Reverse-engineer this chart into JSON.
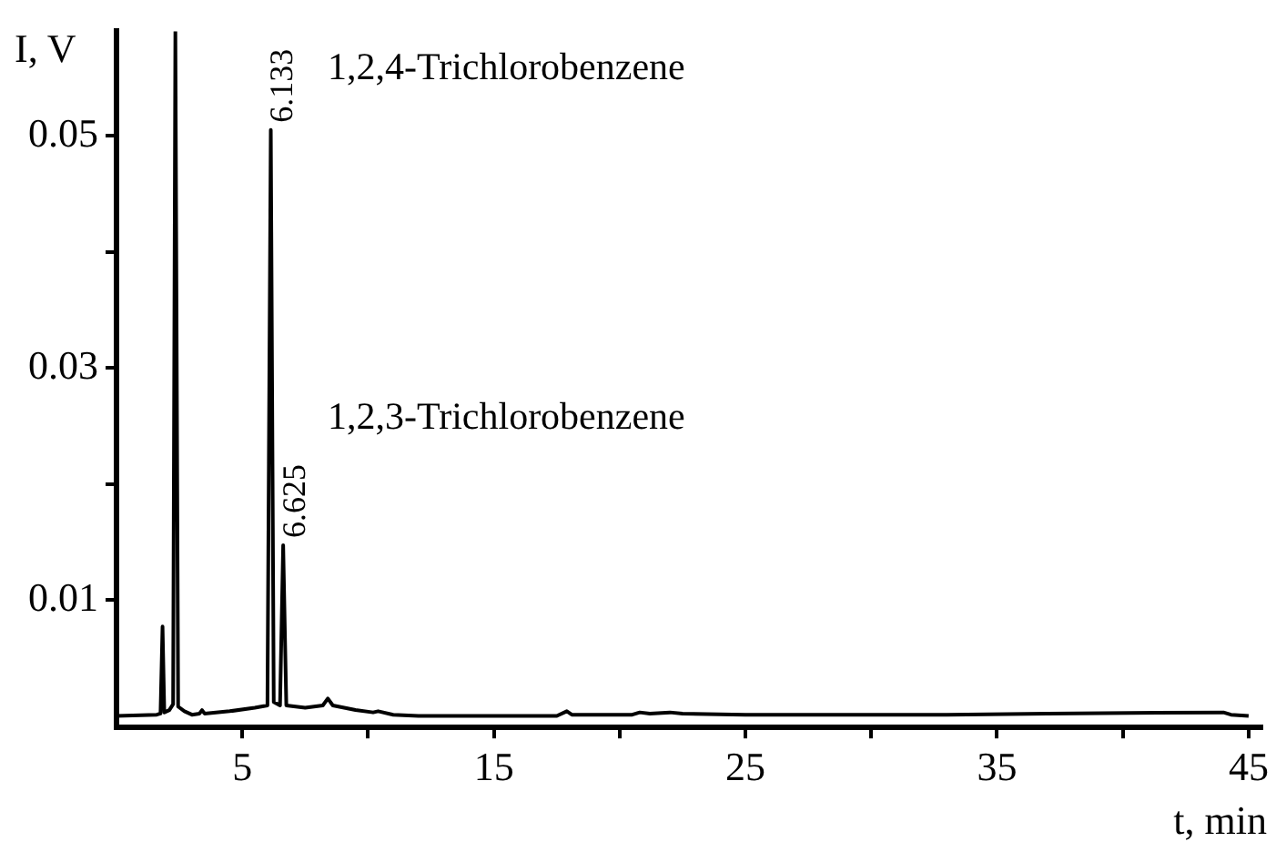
{
  "chart_data": {
    "type": "line",
    "xlabel": "t, min",
    "ylabel": "I, V",
    "x": [
      0,
      1.6,
      1.75,
      1.83,
      1.9,
      2.1,
      2.25,
      2.34,
      2.45,
      2.7,
      3.0,
      3.3,
      3.4,
      3.5,
      4.5,
      5.5,
      6.0,
      6.133,
      6.25,
      6.5,
      6.625,
      6.75,
      7.5,
      8.2,
      8.4,
      8.6,
      9.5,
      10.2,
      10.4,
      11,
      12,
      17.5,
      17.9,
      18.1,
      20.5,
      20.8,
      21.2,
      22,
      22.5,
      25,
      28,
      33,
      37,
      44,
      44.3,
      45
    ],
    "series": [
      {
        "color": "#000000",
        "values": [
          0,
          0.0001,
          0.0002,
          0.0077,
          0.0003,
          0.0005,
          0.001,
          0.059,
          0.0008,
          0.0004,
          0.0001,
          0.0002,
          0.0005,
          0.0002,
          0.0004,
          0.0007,
          0.0009,
          0.0505,
          0.0012,
          0.0009,
          0.0147,
          0.0009,
          0.0007,
          0.0009,
          0.0015,
          0.0009,
          0.0005,
          0.0003,
          0.0004,
          0.0001,
          0,
          0,
          0.0004,
          0.0001,
          0.0001,
          0.0003,
          0.0002,
          0.0003,
          0.0002,
          0.0001,
          0.0001,
          0.0001,
          0.0002,
          0.0003,
          0.0001,
          0
        ]
      }
    ],
    "xlim": [
      0,
      45.5
    ],
    "ylim": [
      -0.001,
      0.059
    ],
    "xticks": [
      5,
      {
        "value": 10,
        "label": null
      },
      15,
      {
        "value": 20,
        "label": null
      },
      25,
      {
        "value": 30,
        "label": null
      },
      35,
      {
        "value": 40,
        "label": null
      },
      45
    ],
    "yticks": [
      0.01,
      {
        "value": 0.02,
        "label": null
      },
      0.03,
      {
        "value": 0.04,
        "label": null
      },
      0.05
    ],
    "annotations": [
      {
        "text": "6.133",
        "x": 6.133,
        "y": 0.0505
      },
      {
        "text": "6.625",
        "x": 6.625,
        "y": 0.0147
      },
      "1,2,4-Trichlorobenzene",
      "1,2,3-Trichlorobenzene"
    ],
    "grid": false,
    "legend": false,
    "marker": "none",
    "line_style": "solid"
  }
}
